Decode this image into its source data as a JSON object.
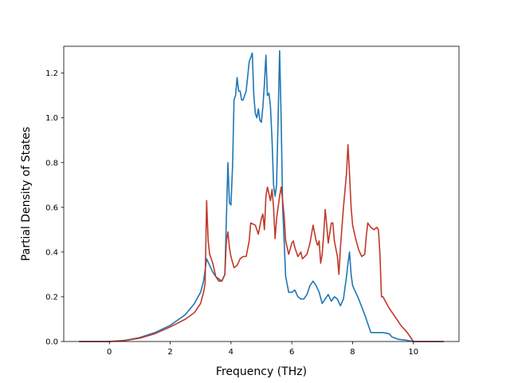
{
  "chart_data": {
    "type": "line",
    "title": "",
    "xlabel": "Frequency (THz)",
    "ylabel": "Partial Density of States",
    "xlim": [
      -1.5,
      11.5
    ],
    "ylim": [
      0,
      1.32
    ],
    "xticks": [
      0,
      2,
      4,
      6,
      8,
      10
    ],
    "yticks": [
      0.0,
      0.2,
      0.4,
      0.6,
      0.8,
      1.0,
      1.2
    ],
    "xtick_labels": [
      "0",
      "2",
      "4",
      "6",
      "8",
      "10"
    ],
    "ytick_labels": [
      "0.0",
      "0.2",
      "0.4",
      "0.6",
      "0.8",
      "1.0",
      "1.2"
    ],
    "grid": false,
    "legend": "none",
    "series": [
      {
        "color": "#1f77b4",
        "points": [
          [
            -1.0,
            0.0
          ],
          [
            0.0,
            0.0
          ],
          [
            0.5,
            0.005
          ],
          [
            1.0,
            0.018
          ],
          [
            1.5,
            0.04
          ],
          [
            2.0,
            0.072
          ],
          [
            2.5,
            0.12
          ],
          [
            2.8,
            0.17
          ],
          [
            3.0,
            0.22
          ],
          [
            3.1,
            0.27
          ],
          [
            3.2,
            0.37
          ],
          [
            3.3,
            0.34
          ],
          [
            3.4,
            0.31
          ],
          [
            3.5,
            0.29
          ],
          [
            3.6,
            0.28
          ],
          [
            3.7,
            0.27
          ],
          [
            3.8,
            0.3
          ],
          [
            3.9,
            0.8
          ],
          [
            3.95,
            0.62
          ],
          [
            4.0,
            0.61
          ],
          [
            4.05,
            0.78
          ],
          [
            4.1,
            1.08
          ],
          [
            4.15,
            1.1
          ],
          [
            4.2,
            1.18
          ],
          [
            4.25,
            1.12
          ],
          [
            4.3,
            1.12
          ],
          [
            4.35,
            1.08
          ],
          [
            4.4,
            1.08
          ],
          [
            4.5,
            1.12
          ],
          [
            4.6,
            1.25
          ],
          [
            4.7,
            1.29
          ],
          [
            4.75,
            1.1
          ],
          [
            4.8,
            1.02
          ],
          [
            4.85,
            1.0
          ],
          [
            4.9,
            1.04
          ],
          [
            4.95,
            0.99
          ],
          [
            5.0,
            0.98
          ],
          [
            5.05,
            1.05
          ],
          [
            5.1,
            1.15
          ],
          [
            5.15,
            1.28
          ],
          [
            5.2,
            1.1
          ],
          [
            5.25,
            1.11
          ],
          [
            5.3,
            1.05
          ],
          [
            5.35,
            0.9
          ],
          [
            5.4,
            0.7
          ],
          [
            5.45,
            0.65
          ],
          [
            5.5,
            0.7
          ],
          [
            5.55,
            1.0
          ],
          [
            5.6,
            1.3
          ],
          [
            5.65,
            1.0
          ],
          [
            5.7,
            0.6
          ],
          [
            5.8,
            0.29
          ],
          [
            5.9,
            0.22
          ],
          [
            6.0,
            0.22
          ],
          [
            6.1,
            0.23
          ],
          [
            6.2,
            0.2
          ],
          [
            6.3,
            0.19
          ],
          [
            6.4,
            0.19
          ],
          [
            6.5,
            0.21
          ],
          [
            6.6,
            0.25
          ],
          [
            6.7,
            0.27
          ],
          [
            6.8,
            0.25
          ],
          [
            6.9,
            0.22
          ],
          [
            7.0,
            0.17
          ],
          [
            7.1,
            0.19
          ],
          [
            7.2,
            0.21
          ],
          [
            7.3,
            0.18
          ],
          [
            7.4,
            0.2
          ],
          [
            7.5,
            0.19
          ],
          [
            7.6,
            0.16
          ],
          [
            7.7,
            0.19
          ],
          [
            7.8,
            0.29
          ],
          [
            7.85,
            0.35
          ],
          [
            7.9,
            0.4
          ],
          [
            7.95,
            0.3
          ],
          [
            8.0,
            0.25
          ],
          [
            8.2,
            0.19
          ],
          [
            8.4,
            0.12
          ],
          [
            8.6,
            0.04
          ],
          [
            8.8,
            0.04
          ],
          [
            9.0,
            0.04
          ],
          [
            9.2,
            0.035
          ],
          [
            9.3,
            0.02
          ],
          [
            9.5,
            0.01
          ],
          [
            9.8,
            0.005
          ],
          [
            10.0,
            0.0
          ],
          [
            11.0,
            0.0
          ]
        ]
      },
      {
        "color": "#c0392b",
        "points": [
          [
            -1.0,
            0.0
          ],
          [
            0.0,
            0.0
          ],
          [
            0.5,
            0.004
          ],
          [
            1.0,
            0.015
          ],
          [
            1.5,
            0.035
          ],
          [
            2.0,
            0.065
          ],
          [
            2.5,
            0.1
          ],
          [
            2.8,
            0.13
          ],
          [
            3.0,
            0.17
          ],
          [
            3.1,
            0.22
          ],
          [
            3.15,
            0.26
          ],
          [
            3.2,
            0.63
          ],
          [
            3.25,
            0.45
          ],
          [
            3.3,
            0.39
          ],
          [
            3.4,
            0.35
          ],
          [
            3.5,
            0.29
          ],
          [
            3.6,
            0.27
          ],
          [
            3.7,
            0.27
          ],
          [
            3.8,
            0.3
          ],
          [
            3.85,
            0.45
          ],
          [
            3.9,
            0.49
          ],
          [
            3.95,
            0.42
          ],
          [
            4.0,
            0.38
          ],
          [
            4.1,
            0.33
          ],
          [
            4.2,
            0.34
          ],
          [
            4.3,
            0.37
          ],
          [
            4.4,
            0.38
          ],
          [
            4.5,
            0.38
          ],
          [
            4.6,
            0.45
          ],
          [
            4.65,
            0.53
          ],
          [
            4.8,
            0.52
          ],
          [
            4.9,
            0.48
          ],
          [
            5.0,
            0.55
          ],
          [
            5.05,
            0.57
          ],
          [
            5.1,
            0.5
          ],
          [
            5.15,
            0.65
          ],
          [
            5.2,
            0.69
          ],
          [
            5.3,
            0.63
          ],
          [
            5.35,
            0.68
          ],
          [
            5.4,
            0.6
          ],
          [
            5.45,
            0.46
          ],
          [
            5.5,
            0.55
          ],
          [
            5.6,
            0.65
          ],
          [
            5.65,
            0.69
          ],
          [
            5.7,
            0.63
          ],
          [
            5.75,
            0.56
          ],
          [
            5.8,
            0.45
          ],
          [
            5.9,
            0.39
          ],
          [
            6.0,
            0.44
          ],
          [
            6.05,
            0.45
          ],
          [
            6.1,
            0.42
          ],
          [
            6.2,
            0.38
          ],
          [
            6.3,
            0.4
          ],
          [
            6.35,
            0.37
          ],
          [
            6.5,
            0.39
          ],
          [
            6.6,
            0.44
          ],
          [
            6.7,
            0.52
          ],
          [
            6.8,
            0.45
          ],
          [
            6.85,
            0.43
          ],
          [
            6.9,
            0.45
          ],
          [
            6.95,
            0.35
          ],
          [
            7.0,
            0.39
          ],
          [
            7.05,
            0.48
          ],
          [
            7.1,
            0.59
          ],
          [
            7.15,
            0.52
          ],
          [
            7.2,
            0.44
          ],
          [
            7.3,
            0.53
          ],
          [
            7.35,
            0.53
          ],
          [
            7.4,
            0.45
          ],
          [
            7.5,
            0.38
          ],
          [
            7.55,
            0.3
          ],
          [
            7.6,
            0.42
          ],
          [
            7.7,
            0.6
          ],
          [
            7.8,
            0.75
          ],
          [
            7.85,
            0.88
          ],
          [
            7.9,
            0.75
          ],
          [
            7.95,
            0.6
          ],
          [
            8.0,
            0.52
          ],
          [
            8.1,
            0.46
          ],
          [
            8.2,
            0.41
          ],
          [
            8.3,
            0.38
          ],
          [
            8.4,
            0.39
          ],
          [
            8.45,
            0.47
          ],
          [
            8.5,
            0.53
          ],
          [
            8.6,
            0.51
          ],
          [
            8.7,
            0.5
          ],
          [
            8.8,
            0.51
          ],
          [
            8.85,
            0.5
          ],
          [
            8.9,
            0.39
          ],
          [
            8.95,
            0.2
          ],
          [
            9.0,
            0.2
          ],
          [
            9.2,
            0.15
          ],
          [
            9.4,
            0.11
          ],
          [
            9.6,
            0.07
          ],
          [
            9.8,
            0.04
          ],
          [
            10.0,
            0.0
          ],
          [
            11.0,
            0.0
          ]
        ]
      }
    ]
  }
}
